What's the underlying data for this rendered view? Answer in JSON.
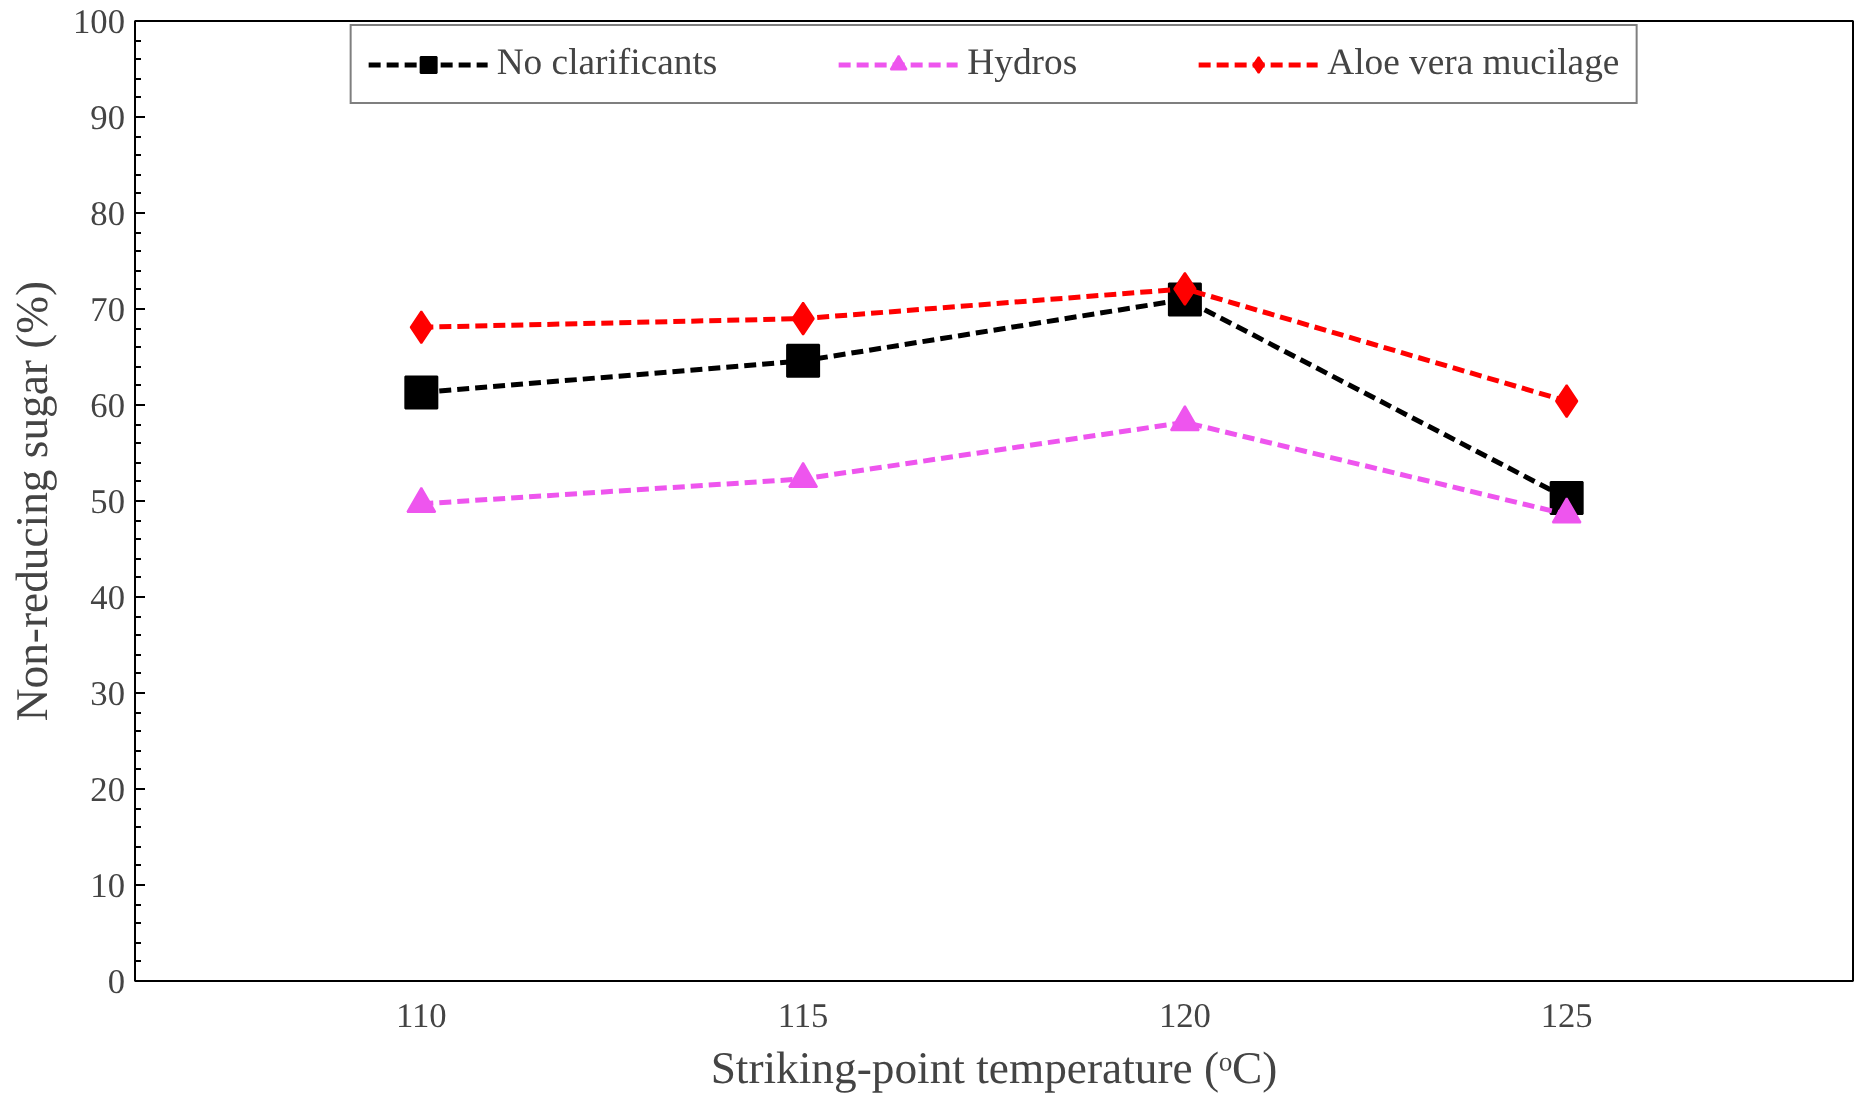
{
  "chart_data": {
    "type": "line",
    "xlabel": "Striking-point temperature (ᵒC)",
    "ylabel": "Non-reducing sugar (%)",
    "categories": [
      "110",
      "115",
      "120",
      "125"
    ],
    "series": [
      {
        "name": "No clarificants",
        "color": "#000000",
        "marker": "square",
        "values": [
          61.3,
          64.6,
          71.0,
          50.3
        ]
      },
      {
        "name": "Hydros",
        "color": "#ee55ee",
        "marker": "triangle",
        "values": [
          49.7,
          52.3,
          58.2,
          48.6
        ]
      },
      {
        "name": "Aloe vera mucilage",
        "color": "#ff0000",
        "marker": "diamond",
        "values": [
          68.1,
          69.0,
          72.1,
          60.4
        ]
      }
    ],
    "ylim": [
      0,
      100
    ],
    "yticks": [
      0,
      10,
      20,
      30,
      40,
      50,
      60,
      70,
      80,
      90,
      100
    ],
    "grid": false,
    "legend": "top",
    "line_style": "dashed"
  }
}
